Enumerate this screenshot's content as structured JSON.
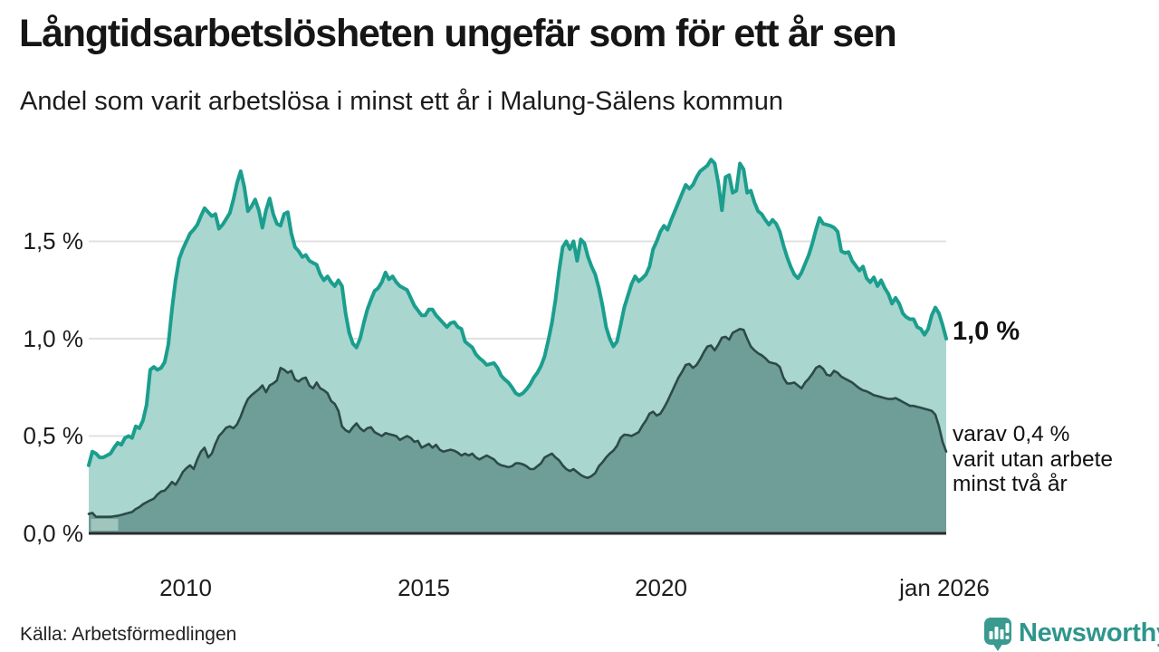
{
  "page": {
    "title": "Långtidsarbetslösheten ungefär som för ett år sen",
    "subtitle": "Andel som varit arbetslösa i minst ett år i Malung-Sälens kommun",
    "source": "Källa: Arbetsförmedlingen",
    "brand": "Newsworthy"
  },
  "colors": {
    "series1_line": "#1b9e8e",
    "series1_fill": "#a9d6ce",
    "series2_line": "#2c4a48",
    "series2_fill": "#6f9d98",
    "artifact_patch": "#9fc5bc",
    "gridline": "#e0e0e0",
    "axis_line": "#2b2b2b",
    "brand_teal": "#2f968c",
    "text_dark": "#161616"
  },
  "chart_data": {
    "type": "area",
    "title": "Långtidsarbetslösheten ungefär som för ett år sen",
    "subtitle": "Andel som varit arbetslösa i minst ett år i Malung-Sälens kommun",
    "unit": "percent",
    "grid": true,
    "legend_position": "end-labels-right",
    "x_axis": {
      "start_year": 2008.0,
      "end_year": 2026.04,
      "ticks": [
        "2010",
        "2015",
        "2020",
        "jan 2026"
      ],
      "tick_years": [
        2010.04,
        2015.04,
        2020.04,
        2026.04
      ]
    },
    "y_axis": {
      "ticks": [
        "1,5 %",
        "1,0 %",
        "0,5 %",
        "0,0 %"
      ],
      "tick_values": [
        1.5,
        1.0,
        0.5,
        0.0
      ],
      "range": [
        0,
        1.95
      ]
    },
    "annotations": {
      "series1_end_label": "1,0 %",
      "series2_end_lines": [
        "varav 0,4 %",
        "varit utan arbete",
        "minst två år"
      ]
    },
    "series": [
      {
        "name": "Andel arbetslösa minst ett år",
        "end_value": 1.0,
        "values": [
          0.35,
          0.42,
          0.41,
          0.39,
          0.39,
          0.4,
          0.41,
          0.44,
          0.465,
          0.455,
          0.49,
          0.5,
          0.49,
          0.55,
          0.54,
          0.58,
          0.66,
          0.84,
          0.855,
          0.84,
          0.85,
          0.88,
          0.97,
          1.15,
          1.3,
          1.41,
          1.46,
          1.5,
          1.54,
          1.56,
          1.585,
          1.63,
          1.67,
          1.65,
          1.63,
          1.64,
          1.565,
          1.585,
          1.615,
          1.645,
          1.715,
          1.8,
          1.86,
          1.78,
          1.655,
          1.68,
          1.715,
          1.66,
          1.57,
          1.66,
          1.72,
          1.64,
          1.59,
          1.58,
          1.64,
          1.65,
          1.54,
          1.47,
          1.45,
          1.42,
          1.43,
          1.4,
          1.39,
          1.38,
          1.33,
          1.3,
          1.32,
          1.29,
          1.27,
          1.3,
          1.27,
          1.13,
          1.03,
          0.975,
          0.955,
          1.0,
          1.08,
          1.15,
          1.2,
          1.245,
          1.26,
          1.29,
          1.34,
          1.305,
          1.32,
          1.29,
          1.27,
          1.26,
          1.25,
          1.21,
          1.17,
          1.145,
          1.12,
          1.12,
          1.15,
          1.15,
          1.12,
          1.1,
          1.08,
          1.06,
          1.08,
          1.085,
          1.06,
          1.05,
          0.985,
          0.97,
          0.955,
          0.92,
          0.9,
          0.885,
          0.865,
          0.87,
          0.875,
          0.85,
          0.81,
          0.79,
          0.775,
          0.75,
          0.72,
          0.71,
          0.72,
          0.74,
          0.765,
          0.8,
          0.825,
          0.86,
          0.91,
          0.99,
          1.08,
          1.2,
          1.35,
          1.47,
          1.5,
          1.46,
          1.5,
          1.4,
          1.51,
          1.49,
          1.42,
          1.37,
          1.33,
          1.26,
          1.17,
          1.06,
          1.0,
          0.96,
          0.985,
          1.07,
          1.16,
          1.22,
          1.28,
          1.32,
          1.295,
          1.31,
          1.33,
          1.37,
          1.46,
          1.5,
          1.55,
          1.58,
          1.56,
          1.61,
          1.655,
          1.7,
          1.745,
          1.79,
          1.77,
          1.79,
          1.83,
          1.86,
          1.875,
          1.89,
          1.92,
          1.9,
          1.8,
          1.66,
          1.83,
          1.84,
          1.75,
          1.76,
          1.9,
          1.87,
          1.75,
          1.76,
          1.7,
          1.655,
          1.64,
          1.61,
          1.585,
          1.61,
          1.59,
          1.55,
          1.48,
          1.42,
          1.37,
          1.33,
          1.31,
          1.34,
          1.385,
          1.43,
          1.49,
          1.56,
          1.62,
          1.59,
          1.585,
          1.58,
          1.57,
          1.55,
          1.45,
          1.44,
          1.445,
          1.4,
          1.375,
          1.35,
          1.37,
          1.31,
          1.29,
          1.315,
          1.27,
          1.3,
          1.26,
          1.23,
          1.18,
          1.21,
          1.18,
          1.13,
          1.11,
          1.1,
          1.1,
          1.06,
          1.05,
          1.02,
          1.05,
          1.12,
          1.16,
          1.13,
          1.07,
          1.0
        ]
      },
      {
        "name": "varav utan arbete minst två år",
        "end_value": 0.4,
        "values": [
          0.1,
          0.105,
          0.085,
          0.085,
          0.085,
          0.085,
          0.085,
          0.088,
          0.09,
          0.095,
          0.1,
          0.105,
          0.11,
          0.125,
          0.135,
          0.15,
          0.16,
          0.17,
          0.178,
          0.2,
          0.215,
          0.22,
          0.24,
          0.264,
          0.25,
          0.28,
          0.315,
          0.335,
          0.35,
          0.33,
          0.38,
          0.42,
          0.44,
          0.39,
          0.41,
          0.46,
          0.5,
          0.52,
          0.543,
          0.55,
          0.54,
          0.56,
          0.6,
          0.65,
          0.69,
          0.71,
          0.725,
          0.74,
          0.76,
          0.725,
          0.76,
          0.77,
          0.785,
          0.85,
          0.84,
          0.825,
          0.835,
          0.79,
          0.78,
          0.795,
          0.8,
          0.76,
          0.745,
          0.775,
          0.745,
          0.735,
          0.72,
          0.68,
          0.665,
          0.63,
          0.55,
          0.53,
          0.52,
          0.545,
          0.565,
          0.54,
          0.525,
          0.54,
          0.545,
          0.52,
          0.51,
          0.5,
          0.515,
          0.51,
          0.505,
          0.5,
          0.48,
          0.49,
          0.5,
          0.49,
          0.47,
          0.475,
          0.44,
          0.45,
          0.46,
          0.44,
          0.455,
          0.43,
          0.42,
          0.425,
          0.43,
          0.425,
          0.415,
          0.4,
          0.41,
          0.4,
          0.41,
          0.39,
          0.38,
          0.39,
          0.4,
          0.39,
          0.38,
          0.36,
          0.35,
          0.345,
          0.34,
          0.345,
          0.36,
          0.36,
          0.355,
          0.345,
          0.33,
          0.33,
          0.345,
          0.36,
          0.39,
          0.4,
          0.41,
          0.39,
          0.375,
          0.35,
          0.33,
          0.32,
          0.33,
          0.315,
          0.3,
          0.29,
          0.285,
          0.295,
          0.31,
          0.345,
          0.365,
          0.39,
          0.41,
          0.425,
          0.45,
          0.49,
          0.507,
          0.505,
          0.5,
          0.51,
          0.52,
          0.553,
          0.58,
          0.615,
          0.625,
          0.605,
          0.615,
          0.645,
          0.68,
          0.72,
          0.76,
          0.8,
          0.83,
          0.865,
          0.87,
          0.85,
          0.865,
          0.895,
          0.93,
          0.96,
          0.965,
          0.94,
          0.97,
          1.005,
          1.01,
          0.995,
          1.03,
          1.04,
          1.05,
          1.045,
          1.0,
          0.96,
          0.94,
          0.925,
          0.915,
          0.9,
          0.88,
          0.875,
          0.87,
          0.855,
          0.8,
          0.77,
          0.77,
          0.775,
          0.76,
          0.745,
          0.775,
          0.795,
          0.82,
          0.85,
          0.86,
          0.845,
          0.815,
          0.81,
          0.835,
          0.825,
          0.805,
          0.795,
          0.785,
          0.775,
          0.76,
          0.745,
          0.735,
          0.73,
          0.72,
          0.71,
          0.705,
          0.7,
          0.695,
          0.69,
          0.69,
          0.695,
          0.685,
          0.675,
          0.665,
          0.655,
          0.655,
          0.65,
          0.645,
          0.64,
          0.635,
          0.63,
          0.61,
          0.55,
          0.47,
          0.42
        ]
      }
    ]
  }
}
